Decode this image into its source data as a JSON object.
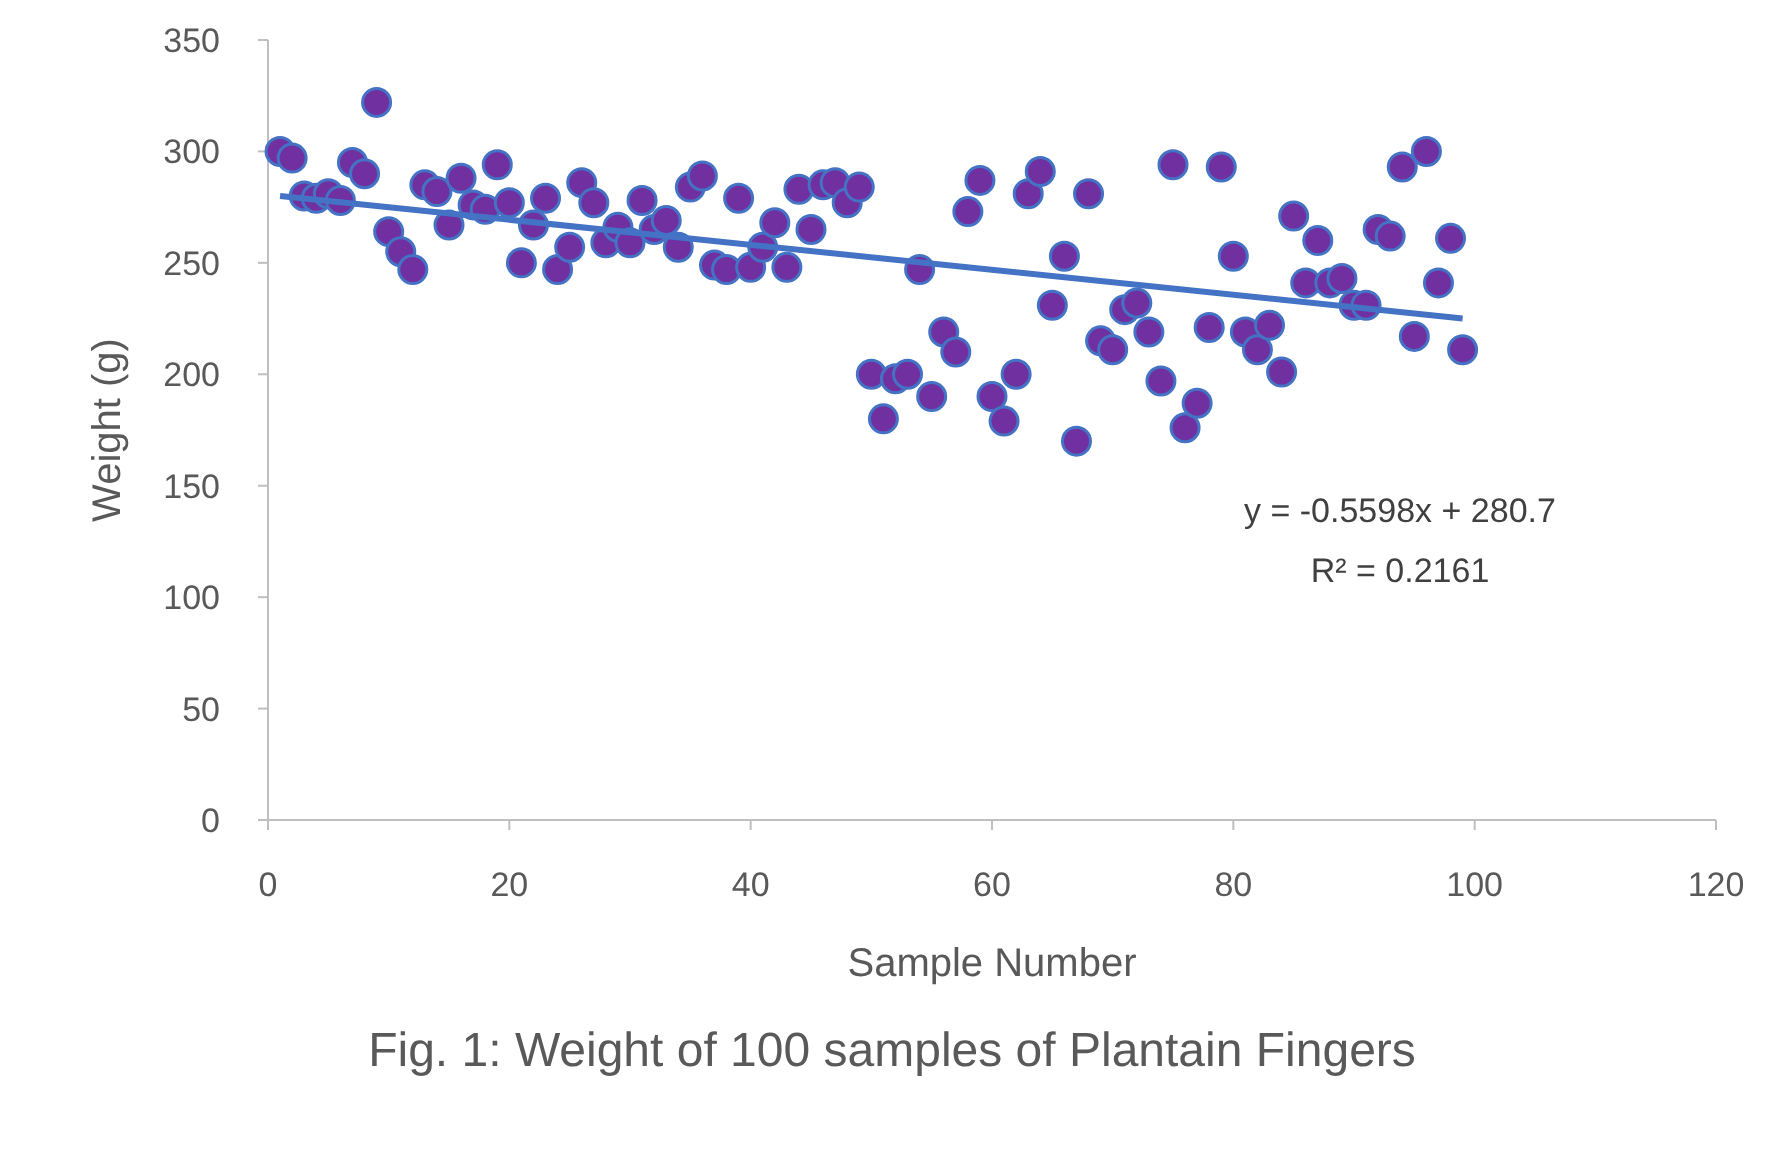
{
  "chart_data": {
    "type": "scatter",
    "title": "Fig. 1: Weight of 100 samples of Plantain Fingers",
    "xlabel": "Sample Number",
    "ylabel": "Weight (g)",
    "x": [
      1,
      2,
      3,
      4,
      5,
      6,
      7,
      8,
      9,
      10,
      11,
      12,
      13,
      14,
      15,
      16,
      17,
      18,
      19,
      20,
      21,
      22,
      23,
      24,
      25,
      26,
      27,
      28,
      29,
      30,
      31,
      32,
      33,
      34,
      35,
      36,
      37,
      38,
      39,
      40,
      41,
      42,
      43,
      44,
      45,
      46,
      47,
      48,
      49,
      50,
      51,
      52,
      53,
      54,
      55,
      56,
      57,
      58,
      59,
      60,
      61,
      62,
      63,
      64,
      65,
      66,
      67,
      68,
      69,
      70,
      71,
      72,
      73,
      74,
      75,
      76,
      77,
      78,
      79,
      80,
      81,
      82,
      83,
      84,
      85,
      86,
      87,
      88,
      89,
      90,
      91,
      92,
      93,
      94,
      95,
      96,
      97,
      98,
      99
    ],
    "series": [
      {
        "color": "#7030a0",
        "values": [
          300,
          297,
          280,
          279,
          281,
          278,
          295,
          290,
          322,
          264,
          255,
          247,
          285,
          282,
          267,
          288,
          276,
          274,
          294,
          277,
          250,
          267,
          279,
          247,
          257,
          286,
          277,
          259,
          266,
          259,
          278,
          265,
          269,
          257,
          284,
          289,
          249,
          247,
          279,
          248,
          257,
          268,
          248,
          283,
          265,
          285,
          286,
          277,
          284,
          200,
          180,
          198,
          200,
          247,
          190,
          219,
          210,
          273,
          287,
          190,
          179,
          200,
          281,
          291,
          231,
          253,
          170,
          281,
          215,
          211,
          229,
          232,
          219,
          197,
          294,
          176,
          187,
          221,
          293,
          253,
          219,
          211,
          222,
          201,
          271,
          241,
          260,
          241,
          243,
          231,
          231,
          265,
          262,
          293,
          217,
          300,
          241,
          261,
          211
        ]
      },
      {
        "type": "line",
        "color": "#4472c4",
        "x": [
          1,
          99
        ],
        "values": [
          280,
          225
        ],
        "marker": "none"
      }
    ],
    "annotations": [
      "y = -0.5598x + 280.7",
      "R² = 0.2161"
    ],
    "marker": "circle",
    "grid": false,
    "xlim": [
      0,
      120
    ],
    "xticks": [
      0,
      20,
      40,
      60,
      80,
      100,
      120
    ],
    "ylim": [
      0,
      350
    ],
    "yticks": [
      0,
      50,
      100,
      150,
      200,
      250,
      300,
      350
    ]
  }
}
